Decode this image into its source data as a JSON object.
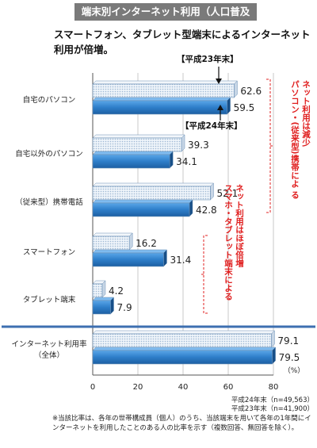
{
  "header": {
    "title": "端末別インターネット利用（人口普及率）",
    "subtitle": "スマートフォン、タブレット型端末によるインターネット利用が倍増。"
  },
  "legend_counts": {
    "h24": "平成24年末（n=49,563）",
    "h23": "平成23年末（n=41,900）"
  },
  "footnote": "※当該比率は、各年の世帯構成員（個人）のうち、当該端末を用いて各年の1年間にインターネットを利用したことのある人の比率を示す（複数回答、無回答を除く）。",
  "chart_data": {
    "type": "bar",
    "orientation": "horizontal",
    "categories": [
      "自宅のパソコン",
      "自宅以外のパソコン",
      "（従来型）携帯電話",
      "スマートフォン",
      "タブレット端末",
      "インターネット利用率\n（全体）"
    ],
    "series": [
      {
        "name": "平成23年末",
        "values": [
          62.6,
          39.3,
          52.1,
          16.2,
          4.2,
          79.1
        ]
      },
      {
        "name": "平成24年末",
        "values": [
          59.5,
          34.1,
          42.8,
          31.4,
          7.9,
          79.5
        ]
      }
    ],
    "xlim": [
      0,
      80
    ],
    "xticks": [
      0,
      20,
      40,
      60,
      80
    ],
    "unit_label": "（%）",
    "grid": true,
    "annotations": {
      "label_h23": "【平成23年末】",
      "label_h24": "【平成24年末】",
      "bracket_top": "ネット利用は減少\nパソコン・(従来型)携帯によ る",
      "bracket_bottom": "ネット利用はほぼ倍増\nスマホ・タブレット端末による"
    }
  },
  "colors": {
    "series_h23": "#d9e6f2",
    "series_h24": "#2e7ec9",
    "annotation": "#e02020",
    "title_bg": "#7a7a7a",
    "divider": "#3d6fb0"
  }
}
